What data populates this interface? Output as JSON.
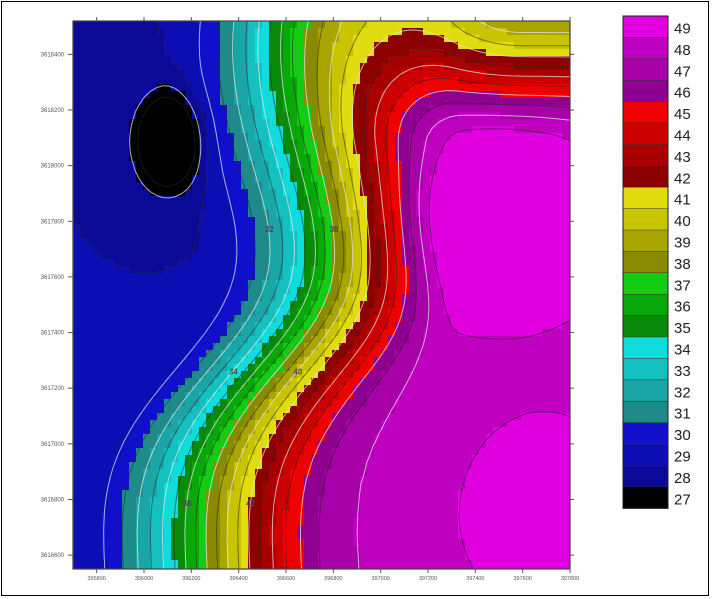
{
  "chart_data": {
    "type": "heatmap",
    "subtype": "filled-contour",
    "x_ticks": [
      "395800",
      "396000",
      "396200",
      "396400",
      "396600",
      "396800",
      "397000",
      "397200",
      "397400",
      "397600",
      "397800"
    ],
    "y_ticks": [
      "3618400",
      "3618200",
      "3618000",
      "3617800",
      "3617600",
      "3617400",
      "3617200",
      "3617000",
      "3616800",
      "3616600"
    ],
    "xlim": [
      395700,
      397800
    ],
    "ylim": [
      3616550,
      3618520
    ],
    "levels": [
      27,
      28,
      29,
      30,
      31,
      32,
      33,
      34,
      35,
      36,
      37,
      38,
      39,
      40,
      41,
      42,
      43,
      44,
      45,
      46,
      47,
      48,
      49
    ],
    "level_colors": [
      "#000000",
      "#0a0a96",
      "#0d0db4",
      "#1010cc",
      "#1e8a8a",
      "#1aa6a6",
      "#14c0c0",
      "#10dcdc",
      "#0a8a0a",
      "#08a808",
      "#14cc14",
      "#8a8a00",
      "#a8a400",
      "#c8c400",
      "#e0dc10",
      "#8c0000",
      "#a80000",
      "#cc0000",
      "#ee0000",
      "#900090",
      "#a800a8",
      "#c000c0",
      "#e000e0"
    ],
    "colorbar_labels": [
      "49",
      "48",
      "47",
      "46",
      "45",
      "44",
      "43",
      "42",
      "41",
      "40",
      "39",
      "38",
      "37",
      "36",
      "35",
      "34",
      "33",
      "32",
      "31",
      "30",
      "29",
      "28",
      "27"
    ],
    "contour_labels": [
      "32",
      "34",
      "36",
      "38",
      "40",
      "42"
    ],
    "legend_position": "right",
    "grid": false
  }
}
